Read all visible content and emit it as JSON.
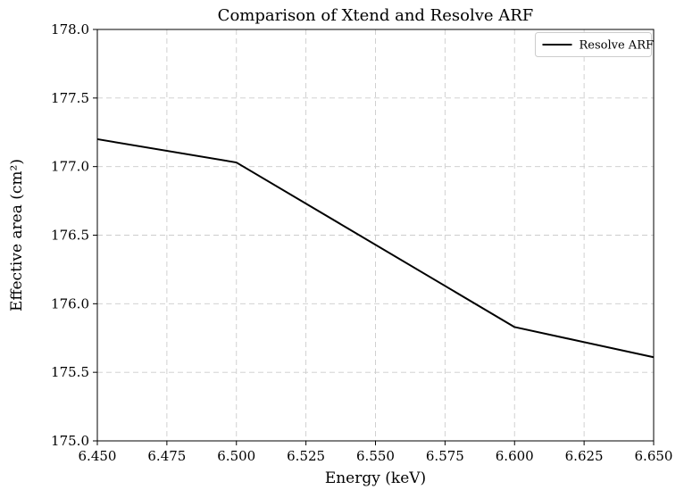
{
  "figure": {
    "background": "#ffffff",
    "grid_color": "#cccccc",
    "spine_color": "#000000",
    "tick_color": "#000000",
    "text_color": "#000000"
  },
  "chart_data": {
    "type": "line",
    "title": "Comparison of Xtend and Resolve ARF",
    "xlabel": "Energy (keV)",
    "ylabel": "Effective area (cm²)",
    "xlim": [
      6.45,
      6.65
    ],
    "ylim": [
      175.0,
      178.0
    ],
    "xticks": [
      6.45,
      6.475,
      6.5,
      6.525,
      6.55,
      6.575,
      6.6,
      6.625,
      6.65
    ],
    "xtick_labels": [
      "6.450",
      "6.475",
      "6.500",
      "6.525",
      "6.550",
      "6.575",
      "6.600",
      "6.625",
      "6.650"
    ],
    "yticks": [
      175.0,
      175.5,
      176.0,
      176.5,
      177.0,
      177.5,
      178.0
    ],
    "ytick_labels": [
      "175.0",
      "175.5",
      "176.0",
      "176.5",
      "177.0",
      "177.5",
      "178.0"
    ],
    "grid": true,
    "grid_style": "dashed",
    "legend": {
      "position": "upper-right",
      "entries": [
        {
          "label": "Resolve ARF",
          "color": "#000000"
        }
      ]
    },
    "series": [
      {
        "name": "Resolve ARF",
        "color": "#000000",
        "line_width": 2,
        "x": [
          6.45,
          6.5,
          6.6,
          6.65
        ],
        "y": [
          177.2,
          177.03,
          175.83,
          175.61
        ]
      }
    ]
  }
}
